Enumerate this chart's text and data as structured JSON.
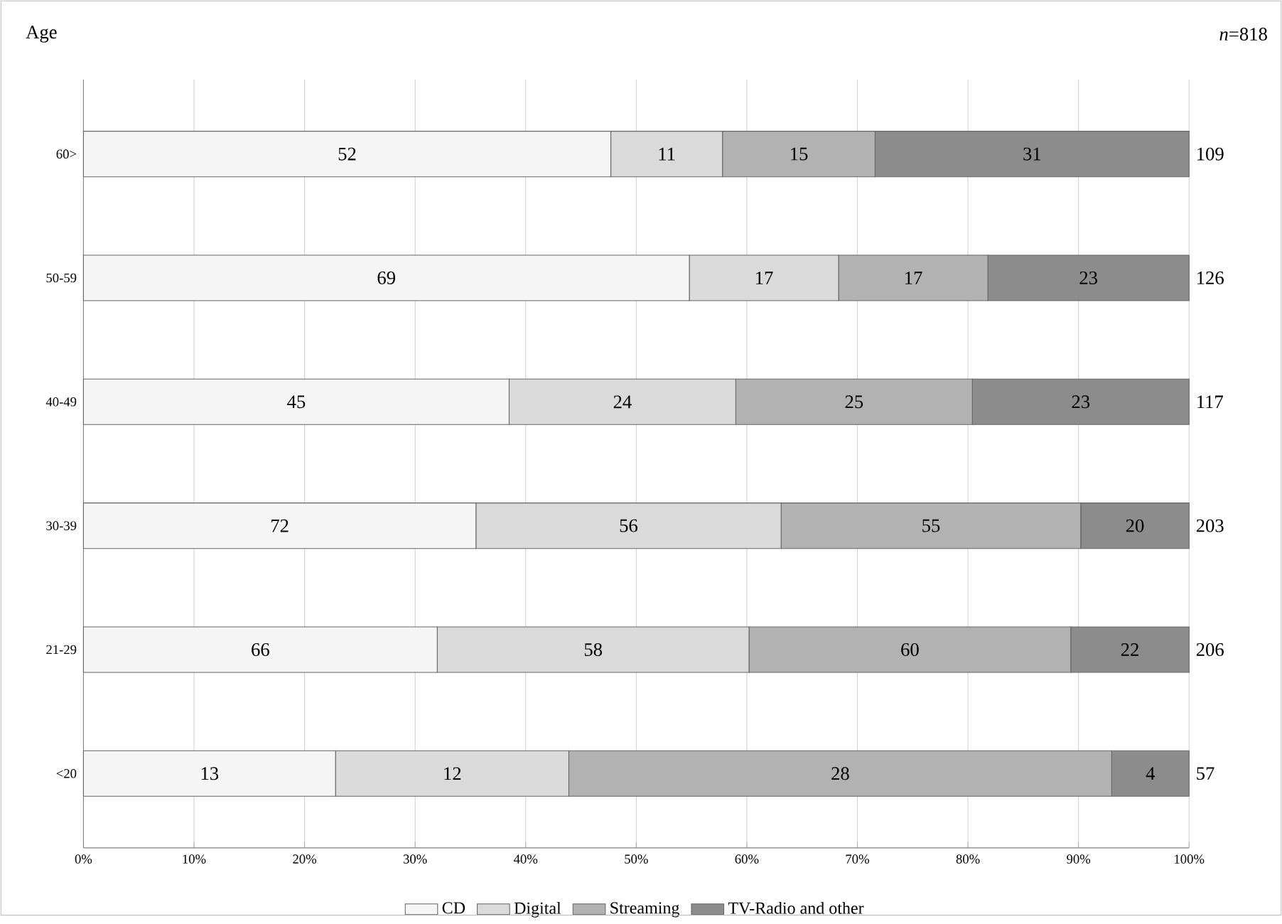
{
  "chart_data": {
    "type": "bar",
    "orientation": "horizontal",
    "stacked": true,
    "ylabel": "Age",
    "categories": [
      "60>",
      "50-59",
      "40-49",
      "30-39",
      "21-29",
      "<20"
    ],
    "series": [
      {
        "name": "CD",
        "color": "#f5f5f5",
        "values": [
          47.7,
          54.8,
          38.5,
          35.5,
          32.0,
          22.8
        ]
      },
      {
        "name": "Digital",
        "color": "#dadada",
        "values": [
          10.1,
          13.5,
          20.5,
          27.6,
          28.2,
          21.1
        ]
      },
      {
        "name": "Streaming",
        "color": "#b2b2b2",
        "values": [
          13.8,
          13.5,
          21.4,
          27.1,
          29.1,
          49.1
        ]
      },
      {
        "name": "TV-Radio and other",
        "color": "#8c8c8c",
        "values": [
          28.4,
          18.2,
          19.6,
          9.8,
          10.7,
          7.0
        ]
      }
    ],
    "xlim": [
      0,
      100
    ],
    "xticks": [
      {
        "value": 0,
        "label": "0%"
      },
      {
        "value": 10,
        "label": "10%"
      },
      {
        "value": 20,
        "label": "20%"
      },
      {
        "value": 30,
        "label": "30%"
      },
      {
        "value": 40,
        "label": "40%"
      },
      {
        "value": 50,
        "label": "50%"
      },
      {
        "value": 60,
        "label": "60%"
      },
      {
        "value": 70,
        "label": "70%"
      },
      {
        "value": 80,
        "label": "80%"
      },
      {
        "value": 90,
        "label": "90%"
      },
      {
        "value": 100,
        "label": "100%"
      }
    ],
    "grid": "x",
    "legend": "bottom",
    "annotations": [
      "*n*=818",
      "52",
      "11",
      "15",
      "31",
      "69",
      "17",
      "17",
      "23",
      "45",
      "24",
      "25",
      "23",
      "72",
      "56",
      "55",
      "20",
      "66",
      "58",
      "60",
      "22",
      "13",
      "12",
      "28",
      "4",
      "109",
      "126",
      "117",
      "203",
      "206",
      "57"
    ]
  }
}
